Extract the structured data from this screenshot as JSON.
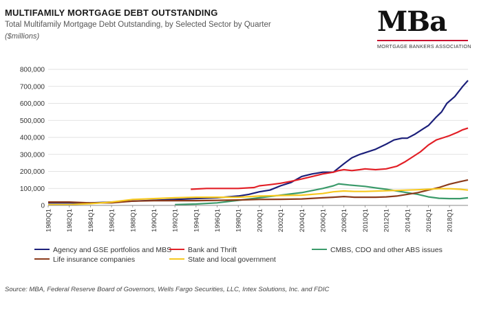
{
  "header": {
    "title": "MULTIFAMILY MORTGAGE DEBT OUTSTANDING",
    "subtitle": "Total Multifamily Mortgage Debt Outstanding, by Selected Sector by Quarter",
    "units": "($millions)"
  },
  "logo": {
    "text": "MBa",
    "tagline": "MORTGAGE BANKERS ASSOCIATION"
  },
  "source": "Source:  MBA, Federal Reserve Board of Governors, Wells Fargo Securities, LLC, Intex Solutions, Inc. and FDIC",
  "chart_data": {
    "type": "line",
    "title": "MULTIFAMILY MORTGAGE DEBT OUTSTANDING",
    "ylabel": "($millions)",
    "xlim": [
      1980,
      2019.75
    ],
    "ylim": [
      0,
      800000
    ],
    "grid": true,
    "legend_placement": "bottom",
    "yticks": [
      0,
      100000,
      200000,
      300000,
      400000,
      500000,
      600000,
      700000,
      800000
    ],
    "ytick_labels": [
      "0",
      "100,000",
      "200,000",
      "300,000",
      "400,000",
      "500,000",
      "600,000",
      "700,000",
      "800,000"
    ],
    "xtick_labels": [
      "1980Q1",
      "1982Q1",
      "1984Q1",
      "1986Q1",
      "1988Q1",
      "1990Q1",
      "1992Q1",
      "1994Q1",
      "1996Q1",
      "1998Q1",
      "2000Q1",
      "2002Q1",
      "2004Q1",
      "2006Q1",
      "2008Q1",
      "2010Q1",
      "2012Q1",
      "2014Q1",
      "2016Q1",
      "2018Q1"
    ],
    "series": [
      {
        "name": "Agency and GSE portfolios and MBS",
        "color": "#1b1f7a",
        "points": [
          [
            1980,
            15000
          ],
          [
            1984,
            15000
          ],
          [
            1988,
            25000
          ],
          [
            1992,
            35000
          ],
          [
            1996,
            45000
          ],
          [
            1998,
            55000
          ],
          [
            1999,
            65000
          ],
          [
            2000,
            80000
          ],
          [
            2001,
            90000
          ],
          [
            2002,
            115000
          ],
          [
            2003,
            135000
          ],
          [
            2004,
            170000
          ],
          [
            2005,
            185000
          ],
          [
            2006,
            195000
          ],
          [
            2007,
            195000
          ],
          [
            2008,
            245000
          ],
          [
            2008.75,
            280000
          ],
          [
            2009.5,
            300000
          ],
          [
            2010,
            310000
          ],
          [
            2011,
            330000
          ],
          [
            2012,
            360000
          ],
          [
            2012.75,
            385000
          ],
          [
            2013.5,
            395000
          ],
          [
            2014,
            395000
          ],
          [
            2014.75,
            420000
          ],
          [
            2015.5,
            450000
          ],
          [
            2016,
            470000
          ],
          [
            2016.75,
            520000
          ],
          [
            2017.25,
            550000
          ],
          [
            2017.75,
            600000
          ],
          [
            2018.5,
            640000
          ],
          [
            2019.25,
            700000
          ],
          [
            2019.75,
            735000
          ]
        ]
      },
      {
        "name": "Bank and Thrift",
        "color": "#e21f26",
        "points": [
          [
            1993.5,
            95000
          ],
          [
            1995,
            100000
          ],
          [
            1998,
            100000
          ],
          [
            1999.5,
            105000
          ],
          [
            2000,
            115000
          ],
          [
            2001,
            122000
          ],
          [
            2002,
            130000
          ],
          [
            2003,
            142000
          ],
          [
            2004,
            155000
          ],
          [
            2005,
            170000
          ],
          [
            2006,
            185000
          ],
          [
            2007,
            195000
          ],
          [
            2007.5,
            205000
          ],
          [
            2008,
            210000
          ],
          [
            2008.75,
            205000
          ],
          [
            2009.5,
            210000
          ],
          [
            2010,
            215000
          ],
          [
            2011,
            210000
          ],
          [
            2012,
            215000
          ],
          [
            2013,
            230000
          ],
          [
            2013.75,
            255000
          ],
          [
            2014.5,
            285000
          ],
          [
            2015.25,
            315000
          ],
          [
            2016,
            355000
          ],
          [
            2016.75,
            385000
          ],
          [
            2017.5,
            400000
          ],
          [
            2018,
            410000
          ],
          [
            2018.75,
            430000
          ],
          [
            2019.25,
            445000
          ],
          [
            2019.75,
            455000
          ]
        ]
      },
      {
        "name": "CMBS, CDO and other ABS issues",
        "color": "#3a9a6a",
        "points": [
          [
            1992,
            5000
          ],
          [
            1994,
            8000
          ],
          [
            1996,
            15000
          ],
          [
            1998,
            30000
          ],
          [
            2000,
            45000
          ],
          [
            2002,
            60000
          ],
          [
            2004,
            75000
          ],
          [
            2006,
            100000
          ],
          [
            2007,
            115000
          ],
          [
            2007.5,
            127000
          ],
          [
            2008.5,
            120000
          ],
          [
            2010,
            112000
          ],
          [
            2011,
            103000
          ],
          [
            2012,
            95000
          ],
          [
            2013,
            85000
          ],
          [
            2014,
            75000
          ],
          [
            2015,
            65000
          ],
          [
            2016,
            50000
          ],
          [
            2017,
            42000
          ],
          [
            2018,
            40000
          ],
          [
            2019,
            40000
          ],
          [
            2019.75,
            45000
          ]
        ]
      },
      {
        "name": "Life insurance companies",
        "color": "#8b3a1a",
        "points": [
          [
            1980,
            20000
          ],
          [
            1982,
            20000
          ],
          [
            1984,
            15000
          ],
          [
            1986,
            15000
          ],
          [
            1988,
            25000
          ],
          [
            1990,
            28000
          ],
          [
            1992,
            28000
          ],
          [
            1994,
            28000
          ],
          [
            1996,
            30000
          ],
          [
            1998,
            32000
          ],
          [
            2000,
            35000
          ],
          [
            2002,
            36000
          ],
          [
            2004,
            38000
          ],
          [
            2006,
            45000
          ],
          [
            2007,
            48000
          ],
          [
            2008,
            52000
          ],
          [
            2009,
            48000
          ],
          [
            2010,
            48000
          ],
          [
            2011,
            48000
          ],
          [
            2012,
            50000
          ],
          [
            2013,
            55000
          ],
          [
            2014,
            65000
          ],
          [
            2015,
            75000
          ],
          [
            2016,
            90000
          ],
          [
            2017,
            105000
          ],
          [
            2018,
            125000
          ],
          [
            2019,
            140000
          ],
          [
            2019.75,
            150000
          ]
        ]
      },
      {
        "name": "State and local government",
        "color": "#f7c81e",
        "points": [
          [
            1980,
            5000
          ],
          [
            1982,
            5000
          ],
          [
            1984,
            10000
          ],
          [
            1986,
            20000
          ],
          [
            1988,
            35000
          ],
          [
            1990,
            40000
          ],
          [
            1992,
            45000
          ],
          [
            1994,
            48000
          ],
          [
            1996,
            48000
          ],
          [
            1998,
            48000
          ],
          [
            2000,
            55000
          ],
          [
            2002,
            58000
          ],
          [
            2004,
            60000
          ],
          [
            2006,
            70000
          ],
          [
            2007,
            80000
          ],
          [
            2008,
            85000
          ],
          [
            2009,
            82000
          ],
          [
            2010,
            82000
          ],
          [
            2011,
            84000
          ],
          [
            2012,
            86000
          ],
          [
            2013,
            88000
          ],
          [
            2014,
            90000
          ],
          [
            2015,
            92000
          ],
          [
            2016,
            95000
          ],
          [
            2017,
            98000
          ],
          [
            2018,
            98000
          ],
          [
            2019,
            95000
          ],
          [
            2019.75,
            90000
          ]
        ]
      }
    ]
  }
}
